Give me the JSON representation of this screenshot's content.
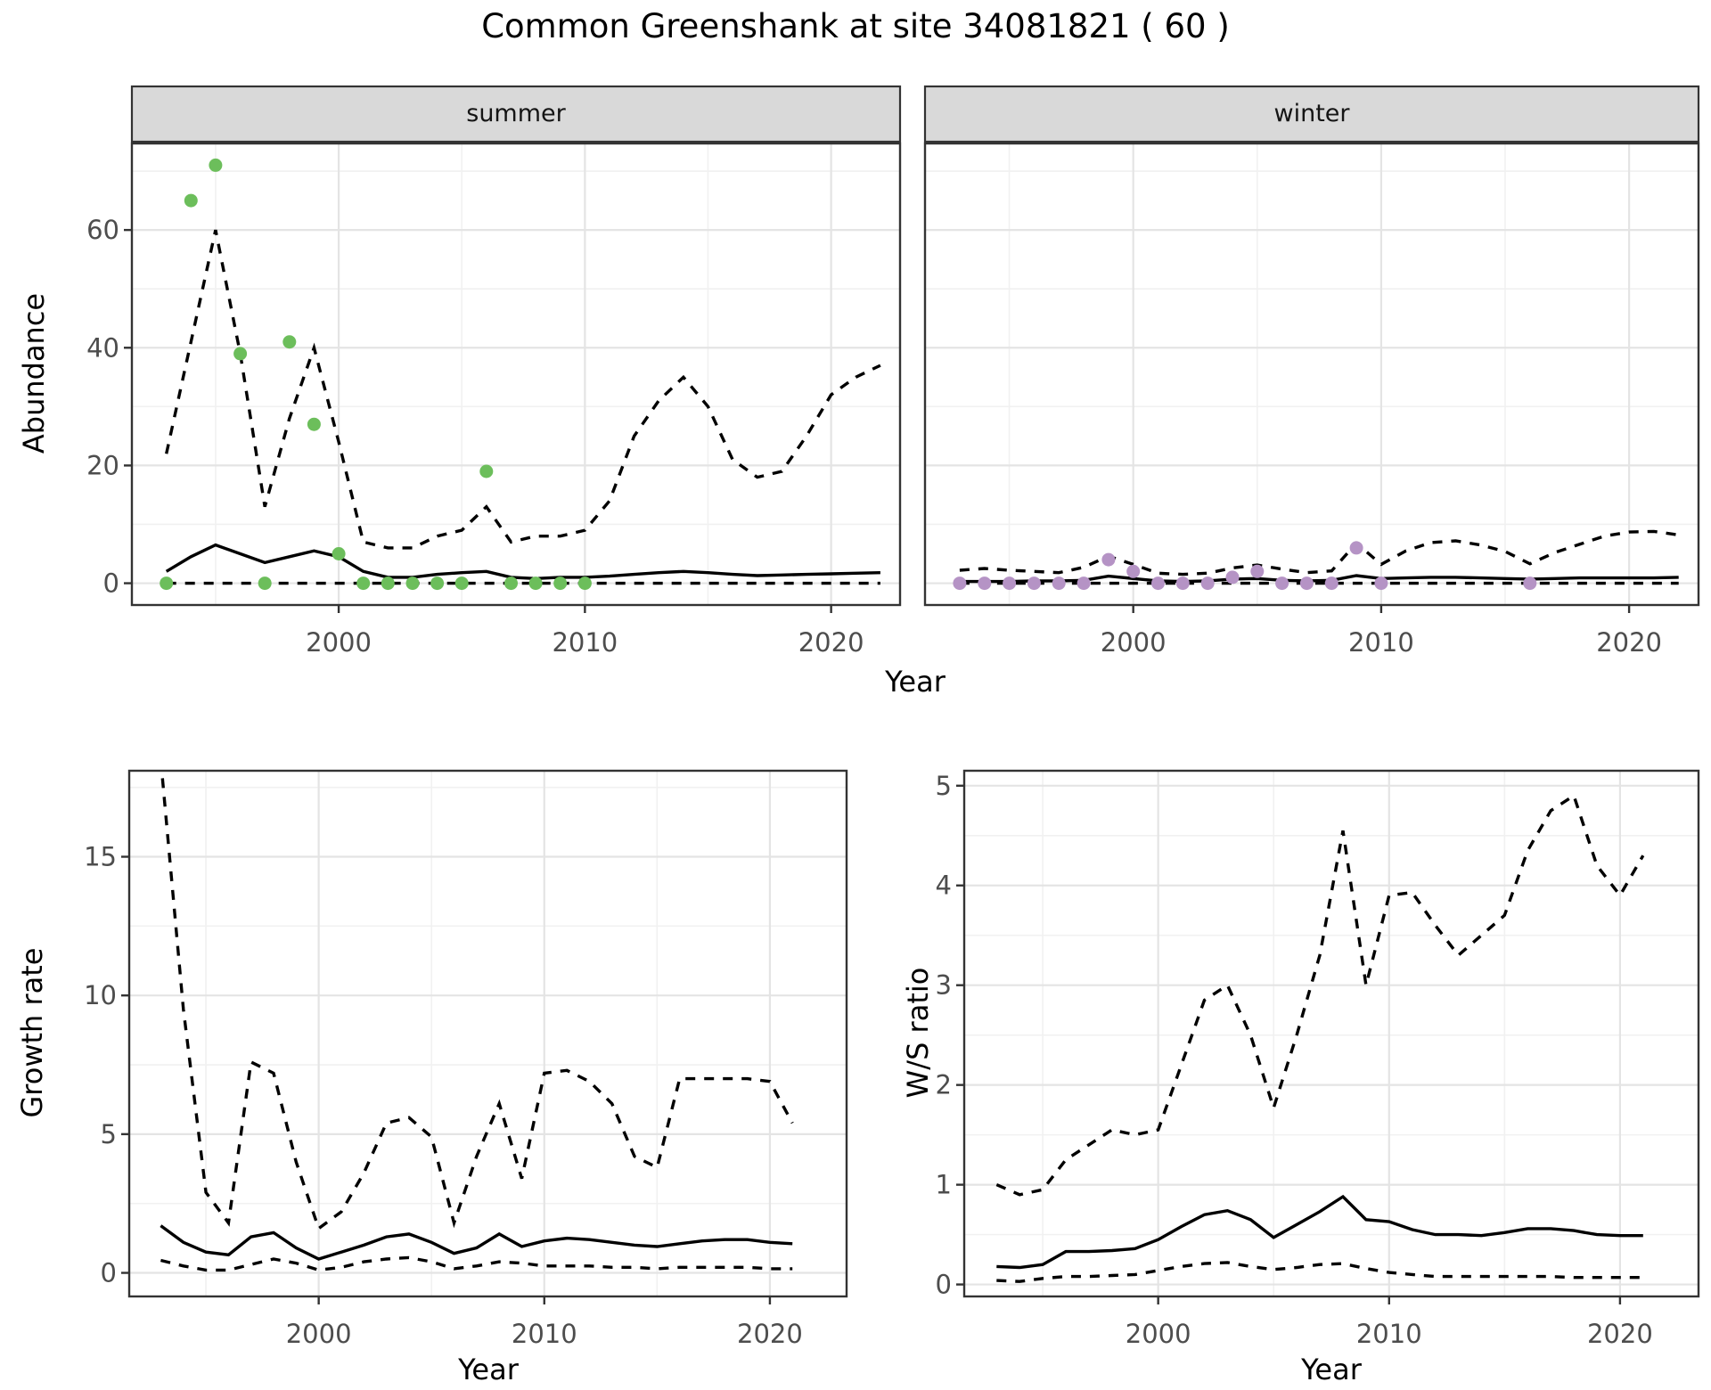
{
  "title": "Common Greenshank at site 34081821 ( 60 )",
  "axis_titles": {
    "abundance": "Abundance",
    "year": "Year",
    "growth_rate": "Growth rate",
    "ws_ratio": "W/S ratio"
  },
  "facets": {
    "summer": "summer",
    "winter": "winter"
  },
  "colors": {
    "summer_points": "#6cbe5b",
    "winter_points": "#b593c5",
    "line": "#000000",
    "strip_bg": "#d9d9d9",
    "panel_border": "#333333",
    "grid_major": "#e4e4e4",
    "grid_minor": "#f1f1f1",
    "tick_text": "#4d4d4d",
    "background": "#ffffff"
  },
  "chart_data": [
    {
      "id": "abundance-summer",
      "type": "line",
      "facet_label": "summer",
      "xlabel": "Year",
      "ylabel": "Abundance",
      "xlim": [
        1991.6,
        2022.8
      ],
      "ylim": [
        -3.7,
        74.7
      ],
      "xticks": [
        2000,
        2010,
        2020
      ],
      "yticks": [
        0,
        20,
        40,
        60
      ],
      "grid": true,
      "legend": "none",
      "x": [
        1993,
        1994,
        1995,
        1996,
        1997,
        1998,
        1999,
        2000,
        2001,
        2002,
        2003,
        2004,
        2005,
        2006,
        2007,
        2008,
        2009,
        2010,
        2011,
        2012,
        2013,
        2014,
        2015,
        2016,
        2017,
        2018,
        2019,
        2020,
        2021,
        2022
      ],
      "series": [
        {
          "name": "median_fit",
          "style": "solid",
          "values": [
            2,
            4.5,
            6.5,
            5,
            3.5,
            4.5,
            5.5,
            4.5,
            2,
            1,
            1,
            1.5,
            1.8,
            2,
            1,
            0.8,
            1,
            1,
            1.2,
            1.5,
            1.8,
            2,
            1.8,
            1.5,
            1.3,
            1.4,
            1.5,
            1.6,
            1.7,
            1.8
          ]
        },
        {
          "name": "lower_ci",
          "style": "dashed",
          "values": [
            0,
            0,
            0,
            0,
            0,
            0,
            0,
            0,
            0,
            0,
            0,
            0,
            0,
            0,
            0,
            0,
            0,
            0,
            0,
            0,
            0,
            0,
            0,
            0,
            0,
            0,
            0,
            0,
            0,
            0
          ]
        },
        {
          "name": "upper_ci",
          "style": "dashed",
          "values": [
            22,
            41,
            60,
            39,
            13,
            28,
            40,
            24,
            7,
            6,
            6,
            8,
            9,
            13,
            7,
            8,
            8,
            9,
            14,
            25,
            31,
            35,
            30,
            21,
            18,
            19,
            25,
            32,
            35,
            37
          ]
        }
      ],
      "points": {
        "color_key": "summer_points",
        "x": [
          1993,
          1994,
          1995,
          1996,
          1997,
          1998,
          1999,
          2000,
          2001,
          2002,
          2003,
          2004,
          2005,
          2006,
          2007,
          2008,
          2009,
          2010
        ],
        "y": [
          0,
          65,
          71,
          39,
          0,
          41,
          27,
          5,
          0,
          0,
          0,
          0,
          0,
          19,
          0,
          0,
          0,
          0
        ]
      }
    },
    {
      "id": "abundance-winter",
      "type": "line",
      "facet_label": "winter",
      "xlabel": "Year",
      "ylabel": "Abundance",
      "xlim": [
        1991.6,
        2022.8
      ],
      "ylim": [
        -3.7,
        74.7
      ],
      "xticks": [
        2000,
        2010,
        2020
      ],
      "yticks": [
        0,
        20,
        40,
        60
      ],
      "grid": true,
      "legend": "none",
      "x": [
        1993,
        1994,
        1995,
        1996,
        1997,
        1998,
        1999,
        2000,
        2001,
        2002,
        2003,
        2004,
        2005,
        2006,
        2007,
        2008,
        2009,
        2010,
        2011,
        2012,
        2013,
        2014,
        2015,
        2016,
        2017,
        2018,
        2019,
        2020,
        2021,
        2022
      ],
      "series": [
        {
          "name": "median_fit",
          "style": "solid",
          "values": [
            0.3,
            0.3,
            0.3,
            0.4,
            0.4,
            0.5,
            1.2,
            0.8,
            0.4,
            0.3,
            0.4,
            0.7,
            0.8,
            0.5,
            0.4,
            0.5,
            1.3,
            0.8,
            0.9,
            1.0,
            1.0,
            0.9,
            0.8,
            0.7,
            0.8,
            0.9,
            0.9,
            0.9,
            0.9,
            1.0
          ]
        },
        {
          "name": "lower_ci",
          "style": "dashed",
          "values": [
            0,
            0,
            0,
            0,
            0,
            0,
            0,
            0,
            0,
            0,
            0,
            0,
            0,
            0,
            0,
            0,
            0,
            0,
            0,
            0,
            0,
            0,
            0,
            0,
            0,
            0,
            0,
            0,
            0,
            0
          ]
        },
        {
          "name": "upper_ci",
          "style": "dashed",
          "values": [
            2.2,
            2.5,
            2.2,
            2.0,
            1.8,
            2.7,
            4.6,
            3.2,
            1.7,
            1.5,
            1.7,
            2.6,
            3.1,
            2.4,
            1.8,
            2.1,
            6.8,
            3.2,
            5.5,
            6.9,
            7.2,
            6.5,
            5.4,
            3.3,
            5.2,
            6.6,
            8.0,
            8.7,
            8.8,
            8.2
          ]
        }
      ],
      "points": {
        "color_key": "winter_points",
        "x": [
          1993,
          1994,
          1995,
          1996,
          1997,
          1998,
          1999,
          2000,
          2001,
          2002,
          2003,
          2004,
          2005,
          2006,
          2007,
          2008,
          2009,
          2010,
          2016
        ],
        "y": [
          0,
          0,
          0,
          0,
          0,
          0,
          4,
          2,
          0,
          0,
          0,
          1,
          2,
          0,
          0,
          0,
          6,
          0,
          0
        ]
      }
    },
    {
      "id": "growth-rate",
      "type": "line",
      "facet_label": "",
      "xlabel": "Year",
      "ylabel": "Growth rate",
      "xlim": [
        1991.6,
        2023.4
      ],
      "ylim": [
        -0.85,
        18.1
      ],
      "xticks": [
        2000,
        2010,
        2020
      ],
      "yticks": [
        0,
        5,
        10,
        15
      ],
      "grid": true,
      "legend": "none",
      "x": [
        1993,
        1994,
        1995,
        1996,
        1997,
        1998,
        1999,
        2000,
        2001,
        2002,
        2003,
        2004,
        2005,
        2006,
        2007,
        2008,
        2009,
        2010,
        2011,
        2012,
        2013,
        2014,
        2015,
        2016,
        2017,
        2018,
        2019,
        2020,
        2021
      ],
      "series": [
        {
          "name": "median_fit",
          "style": "solid",
          "values": [
            1.7,
            1.1,
            0.75,
            0.65,
            1.3,
            1.45,
            0.9,
            0.5,
            0.75,
            1.0,
            1.3,
            1.4,
            1.1,
            0.7,
            0.9,
            1.4,
            0.95,
            1.15,
            1.25,
            1.2,
            1.1,
            1.0,
            0.95,
            1.05,
            1.15,
            1.2,
            1.2,
            1.1,
            1.05
          ]
        },
        {
          "name": "lower_ci",
          "style": "dashed",
          "values": [
            0.45,
            0.25,
            0.1,
            0.1,
            0.3,
            0.5,
            0.35,
            0.1,
            0.2,
            0.4,
            0.5,
            0.55,
            0.4,
            0.15,
            0.25,
            0.4,
            0.35,
            0.25,
            0.25,
            0.25,
            0.2,
            0.2,
            0.15,
            0.2,
            0.2,
            0.2,
            0.2,
            0.15,
            0.15
          ]
        },
        {
          "name": "upper_ci",
          "style": "dashed",
          "values": [
            18.5,
            9.5,
            2.9,
            1.8,
            7.6,
            7.2,
            4.0,
            1.6,
            2.2,
            3.6,
            5.4,
            5.6,
            4.9,
            1.8,
            4.2,
            6.1,
            3.4,
            7.2,
            7.3,
            6.9,
            6.1,
            4.2,
            3.8,
            7.0,
            7.0,
            7.0,
            7.0,
            6.9,
            5.4
          ]
        }
      ]
    },
    {
      "id": "ws-ratio",
      "type": "line",
      "facet_label": "",
      "xlabel": "Year",
      "ylabel": "W/S ratio",
      "xlim": [
        1991.6,
        2023.4
      ],
      "ylim": [
        -0.12,
        5.15
      ],
      "xticks": [
        2000,
        2010,
        2020
      ],
      "yticks": [
        0,
        1,
        2,
        3,
        4,
        5
      ],
      "grid": true,
      "legend": "none",
      "x": [
        1993,
        1994,
        1995,
        1996,
        1997,
        1998,
        1999,
        2000,
        2001,
        2002,
        2003,
        2004,
        2005,
        2006,
        2007,
        2008,
        2009,
        2010,
        2011,
        2012,
        2013,
        2014,
        2015,
        2016,
        2017,
        2018,
        2019,
        2020,
        2021
      ],
      "series": [
        {
          "name": "median_fit",
          "style": "solid",
          "values": [
            0.18,
            0.17,
            0.2,
            0.33,
            0.33,
            0.34,
            0.36,
            0.45,
            0.58,
            0.7,
            0.74,
            0.65,
            0.47,
            0.6,
            0.73,
            0.88,
            0.65,
            0.63,
            0.55,
            0.5,
            0.5,
            0.49,
            0.52,
            0.56,
            0.56,
            0.54,
            0.5,
            0.49,
            0.49
          ]
        },
        {
          "name": "lower_ci",
          "style": "dashed",
          "values": [
            0.04,
            0.03,
            0.06,
            0.08,
            0.08,
            0.09,
            0.1,
            0.14,
            0.18,
            0.21,
            0.22,
            0.18,
            0.15,
            0.17,
            0.2,
            0.21,
            0.16,
            0.12,
            0.1,
            0.08,
            0.08,
            0.08,
            0.08,
            0.08,
            0.08,
            0.07,
            0.07,
            0.07,
            0.07
          ]
        },
        {
          "name": "upper_ci",
          "style": "dashed",
          "values": [
            1.0,
            0.9,
            0.95,
            1.25,
            1.4,
            1.55,
            1.5,
            1.55,
            2.2,
            2.85,
            3.0,
            2.5,
            1.77,
            2.5,
            3.3,
            4.55,
            3.0,
            3.9,
            3.93,
            3.6,
            3.3,
            3.5,
            3.7,
            4.35,
            4.75,
            4.9,
            4.2,
            3.9,
            4.3
          ]
        }
      ]
    }
  ]
}
